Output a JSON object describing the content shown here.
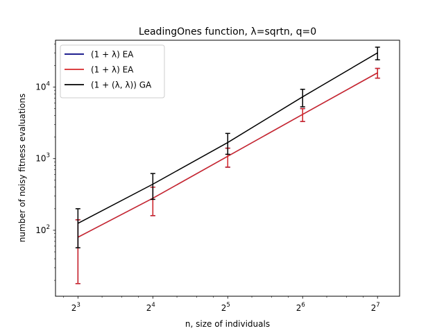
{
  "chart_data": {
    "type": "line",
    "title": "LeadingOnes function, λ=sqrtn, q=0",
    "xlabel": "n, size of individuals",
    "ylabel": "number of noisy fitness evaluations",
    "x": [
      8,
      16,
      32,
      64,
      128
    ],
    "x_scale": "log2",
    "y_scale": "log10",
    "xlim": [
      6.5,
      157
    ],
    "ylim": [
      12,
      45000
    ],
    "x_ticks": [
      {
        "value": 8,
        "base": "2",
        "exp": "3"
      },
      {
        "value": 16,
        "base": "2",
        "exp": "4"
      },
      {
        "value": 32,
        "base": "2",
        "exp": "5"
      },
      {
        "value": 64,
        "base": "2",
        "exp": "6"
      },
      {
        "value": 128,
        "base": "2",
        "exp": "7"
      }
    ],
    "y_ticks": [
      {
        "value": 100,
        "base": "10",
        "exp": "2"
      },
      {
        "value": 1000,
        "base": "10",
        "exp": "3"
      },
      {
        "value": 10000,
        "base": "10",
        "exp": "4"
      }
    ],
    "legend_position": "top-left",
    "series": [
      {
        "name": "(1 + λ) EA",
        "color": "#00007f",
        "values": [
          80,
          280,
          1080,
          4150,
          15800
        ],
        "err_low": [
          18,
          160,
          760,
          3300,
          13300
        ],
        "err_high": [
          140,
          400,
          1400,
          5000,
          18200
        ]
      },
      {
        "name": "(1 + λ) EA",
        "color": "#d62728",
        "values": [
          80,
          280,
          1080,
          4150,
          15800
        ],
        "err_low": [
          18,
          160,
          760,
          3300,
          13300
        ],
        "err_high": [
          140,
          400,
          1400,
          5000,
          18200
        ]
      },
      {
        "name": "(1 + (λ, λ)) GA",
        "color": "#000000",
        "values": [
          125,
          440,
          1680,
          7300,
          30000
        ],
        "err_low": [
          57,
          270,
          1150,
          5300,
          24000
        ],
        "err_high": [
          200,
          620,
          2250,
          9300,
          36000
        ]
      }
    ]
  }
}
